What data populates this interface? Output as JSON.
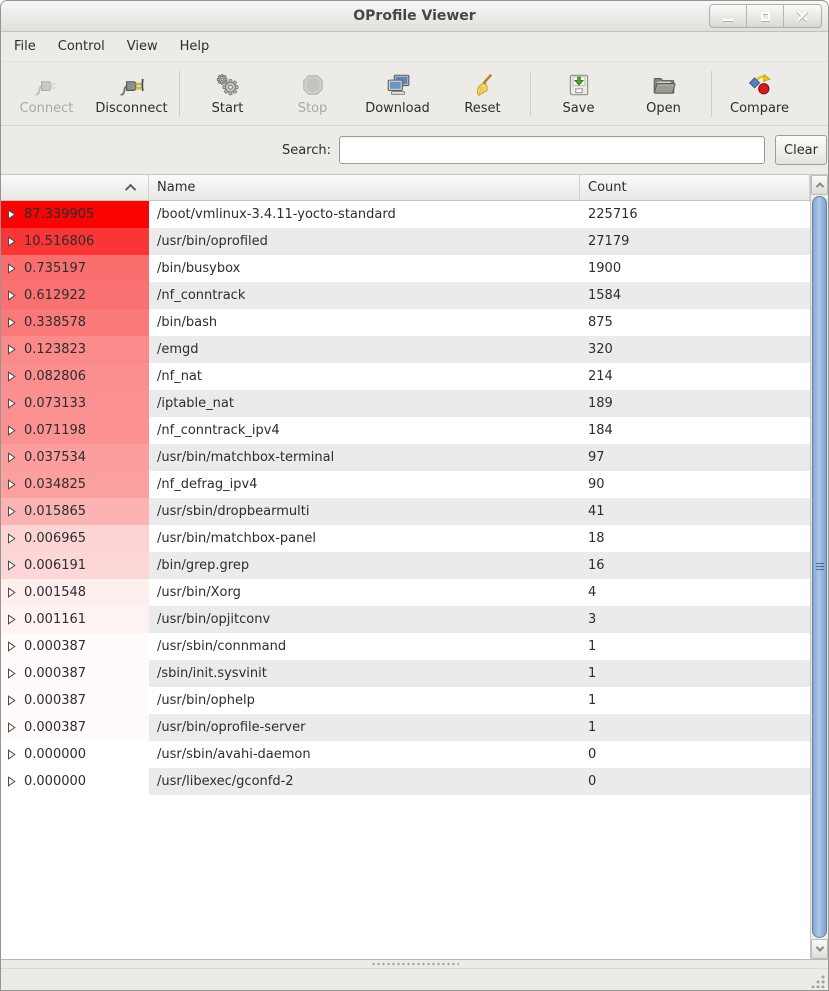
{
  "window": {
    "title": "OProfile Viewer"
  },
  "menu": {
    "items": [
      "File",
      "Control",
      "View",
      "Help"
    ]
  },
  "toolbar": {
    "buttons": [
      {
        "label": "Connect",
        "icon": "connect-plug-icon",
        "enabled": false
      },
      {
        "label": "Disconnect",
        "icon": "disconnect-plug-icon",
        "enabled": true,
        "separator_after": true
      },
      {
        "label": "Start",
        "icon": "gears-icon",
        "enabled": true
      },
      {
        "label": "Stop",
        "icon": "stop-sign-icon",
        "enabled": false
      },
      {
        "label": "Download",
        "icon": "computer-icon",
        "enabled": true
      },
      {
        "label": "Reset",
        "icon": "broom-icon",
        "enabled": true,
        "separator_after": true
      },
      {
        "label": "Save",
        "icon": "save-icon",
        "enabled": true
      },
      {
        "label": "Open",
        "icon": "folder-icon",
        "enabled": true,
        "separator_after": true
      },
      {
        "label": "Compare",
        "icon": "compare-icon",
        "enabled": true
      }
    ]
  },
  "search": {
    "label": "Search:",
    "value": "",
    "clear_label": "Clear"
  },
  "table": {
    "headers": {
      "percent": "",
      "name": "Name",
      "count": "Count"
    },
    "sort": {
      "column": "percent",
      "indicator": "up"
    },
    "rows": [
      {
        "percent": "87.339905",
        "name": "/boot/vmlinux-3.4.11-yocto-standard",
        "count": "225716",
        "heat": "#fb0203"
      },
      {
        "percent": "10.516806",
        "name": "/usr/bin/oprofiled",
        "count": "27179",
        "heat": "#f93536"
      },
      {
        "percent": "0.735197",
        "name": "/bin/busybox",
        "count": "1900",
        "heat": "#fa6e6e"
      },
      {
        "percent": "0.612922",
        "name": "/nf_conntrack",
        "count": "1584",
        "heat": "#fa7172"
      },
      {
        "percent": "0.338578",
        "name": "/bin/bash",
        "count": "875",
        "heat": "#fa7a7a"
      },
      {
        "percent": "0.123823",
        "name": "/emgd",
        "count": "320",
        "heat": "#fb8a8a"
      },
      {
        "percent": "0.082806",
        "name": "/nf_nat",
        "count": "214",
        "heat": "#fb8e8e"
      },
      {
        "percent": "0.073133",
        "name": "/iptable_nat",
        "count": "189",
        "heat": "#fb9090"
      },
      {
        "percent": "0.071198",
        "name": "/nf_conntrack_ipv4",
        "count": "184",
        "heat": "#fb9191"
      },
      {
        "percent": "0.037534",
        "name": "/usr/bin/matchbox-terminal",
        "count": "97",
        "heat": "#fc9e9e"
      },
      {
        "percent": "0.034825",
        "name": "/nf_defrag_ipv4",
        "count": "90",
        "heat": "#fc9f9f"
      },
      {
        "percent": "0.015865",
        "name": "/usr/sbin/dropbearmulti",
        "count": "41",
        "heat": "#fcb3b3"
      },
      {
        "percent": "0.006965",
        "name": "/usr/bin/matchbox-panel",
        "count": "18",
        "heat": "#fdd4d4"
      },
      {
        "percent": "0.006191",
        "name": "/bin/grep.grep",
        "count": "16",
        "heat": "#fdd7d7"
      },
      {
        "percent": "0.001548",
        "name": "/usr/bin/Xorg",
        "count": "4",
        "heat": "#feeeee"
      },
      {
        "percent": "0.001161",
        "name": "/usr/bin/opjitconv",
        "count": "3",
        "heat": "#fef3f3"
      },
      {
        "percent": "0.000387",
        "name": "/usr/sbin/connmand",
        "count": "1",
        "heat": "#fffbfb"
      },
      {
        "percent": "0.000387",
        "name": "/sbin/init.sysvinit",
        "count": "1",
        "heat": "#fffbfb"
      },
      {
        "percent": "0.000387",
        "name": "/usr/bin/ophelp",
        "count": "1",
        "heat": "#fffbfb"
      },
      {
        "percent": "0.000387",
        "name": "/usr/bin/oprofile-server",
        "count": "1",
        "heat": "#fffbfb"
      },
      {
        "percent": "0.000000",
        "name": "/usr/sbin/avahi-daemon",
        "count": "0",
        "heat": "#ffffff"
      },
      {
        "percent": "0.000000",
        "name": "/usr/libexec/gconfd-2",
        "count": "0",
        "heat": "#ffffff"
      }
    ]
  },
  "colors": {
    "heat_max": "#fb0203",
    "row_alt": "#ebebeb",
    "scrollbar_thumb": "#8fb0d9"
  }
}
